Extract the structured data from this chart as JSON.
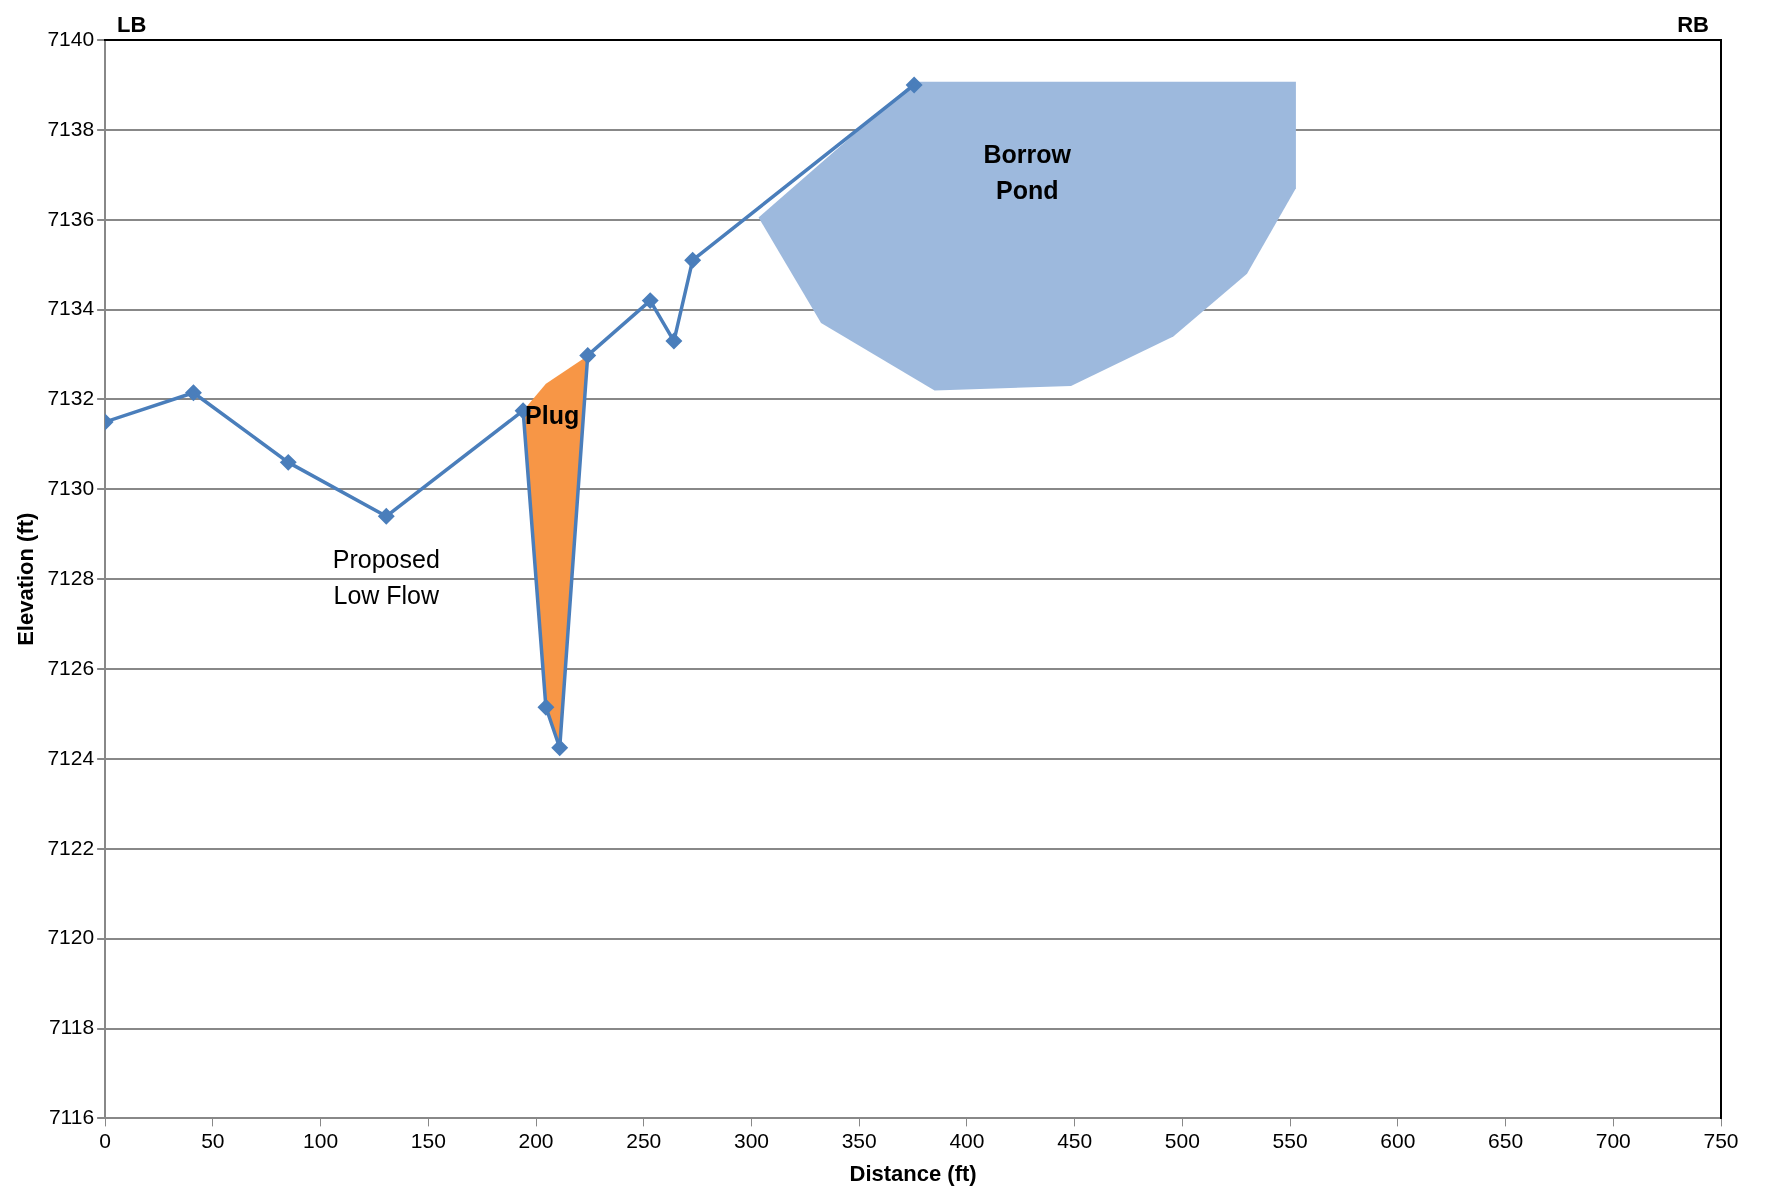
{
  "chart_data": {
    "type": "line",
    "xlabel": "Distance (ft)",
    "ylabel": "Elevation (ft)",
    "xlim": [
      0,
      750
    ],
    "xticks": [
      0,
      50,
      100,
      150,
      200,
      250,
      300,
      350,
      400,
      450,
      500,
      550,
      600,
      650,
      700,
      750
    ],
    "ylim": [
      7116,
      7140
    ],
    "yticks": [
      7116,
      7118,
      7120,
      7122,
      7124,
      7126,
      7128,
      7130,
      7132,
      7134,
      7136,
      7138,
      7140
    ],
    "grid": "y",
    "legend": false,
    "line_style": "solid",
    "series": [
      {
        "type": "area",
        "name": "Plug",
        "color": "#f79646",
        "x": [
          194,
          204.6,
          224.2,
          211,
          204.6
        ],
        "values": [
          7131.75,
          7132.35,
          7132.98,
          7124.25,
          7125.16
        ]
      },
      {
        "type": "area",
        "name": "Borrow\nPond",
        "color": "#9db9dd",
        "x": [
          375.5,
          552.7,
          552.7,
          530,
          495.8,
          448.3,
          385,
          332.3,
          303.3
        ],
        "values": [
          7139.07,
          7139.07,
          7136.7,
          7134.8,
          7133.4,
          7132.3,
          7132.2,
          7133.7,
          7136.05
        ]
      },
      {
        "name": "Proposed\nLow Flow",
        "marker": "diamond",
        "color": "#4a7ebb",
        "x": [
          0,
          41,
          85,
          130.5,
          194,
          204.6,
          211,
          224,
          253,
          264,
          272.7,
          375.5
        ],
        "values": [
          7131.5,
          7132.15,
          7130.6,
          7129.4,
          7131.75,
          7125.15,
          7124.25,
          7132.98,
          7134.2,
          7133.3,
          7135.1,
          7139.0
        ]
      }
    ],
    "annotations": [
      "LB",
      "RB"
    ]
  }
}
